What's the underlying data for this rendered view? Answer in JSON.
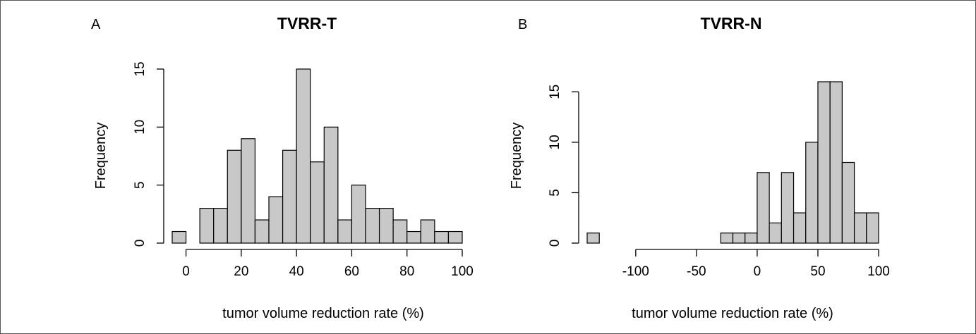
{
  "chart_data": [
    {
      "type": "bar",
      "panel_label": "A",
      "title": "TVRR-T",
      "xlabel": "tumor volume reduction rate (%)",
      "ylabel": "Frequency",
      "bin_width": 5,
      "bins_start": [
        -5,
        0,
        5,
        10,
        15,
        20,
        25,
        30,
        35,
        40,
        45,
        50,
        55,
        60,
        65,
        70,
        75,
        80,
        85,
        90,
        95
      ],
      "values": [
        1,
        0,
        3,
        3,
        8,
        9,
        2,
        4,
        8,
        15,
        7,
        10,
        2,
        5,
        3,
        3,
        2,
        1,
        2,
        1,
        1
      ],
      "xticks": [
        0,
        20,
        40,
        60,
        80,
        100
      ],
      "xtick_labels": [
        "0",
        "20",
        "40",
        "60",
        "80",
        "100"
      ],
      "yticks": [
        0,
        5,
        10,
        15
      ],
      "ytick_labels": [
        "0",
        "5",
        "10",
        "15"
      ],
      "xlim": [
        -5,
        100
      ],
      "ylim": [
        0,
        15
      ],
      "grid": false,
      "bar_color": "#c8c8c8"
    },
    {
      "type": "bar",
      "panel_label": "B",
      "title": "TVRR-N",
      "xlabel": "tumor volume reduction rate (%)",
      "ylabel": "Frequency",
      "bin_width": 10,
      "bins_start": [
        -140,
        -130,
        -120,
        -110,
        -100,
        -90,
        -80,
        -70,
        -60,
        -50,
        -40,
        -30,
        -20,
        -10,
        0,
        10,
        20,
        30,
        40,
        50,
        60,
        70,
        80,
        90
      ],
      "values": [
        1,
        0,
        0,
        0,
        0,
        0,
        0,
        0,
        0,
        0,
        0,
        1,
        1,
        1,
        7,
        2,
        7,
        3,
        10,
        16,
        16,
        8,
        3,
        3
      ],
      "xticks": [
        -100,
        -50,
        0,
        50,
        100
      ],
      "xtick_labels": [
        "-100",
        "-50",
        "0",
        "50",
        "100"
      ],
      "yticks": [
        0,
        5,
        10,
        15
      ],
      "ytick_labels": [
        "0",
        "5",
        "10",
        "15"
      ],
      "xlim": [
        -140,
        100
      ],
      "ylim": [
        0,
        16
      ],
      "grid": false,
      "bar_color": "#c8c8c8"
    }
  ]
}
